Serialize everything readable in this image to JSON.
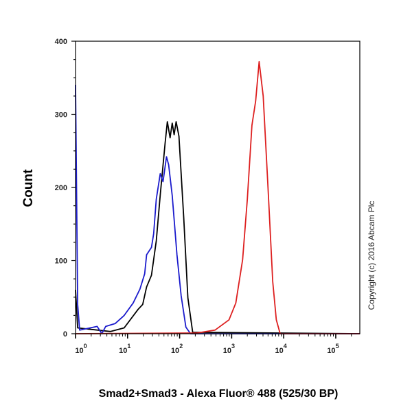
{
  "chart_data": {
    "type": "line",
    "title": "",
    "xlabel": "Smad2+Smad3 - Alexa Fluor® 488 (525/30 BP)",
    "ylabel": "Count",
    "xscale": "log",
    "xlim": [
      1,
      290000
    ],
    "ylim": [
      0,
      400
    ],
    "y_ticks": [
      0,
      100,
      200,
      300,
      400
    ],
    "x_ticks": [
      {
        "base": "10",
        "exp": "0",
        "value": 1
      },
      {
        "base": "10",
        "exp": "1",
        "value": 10
      },
      {
        "base": "10",
        "exp": "2",
        "value": 100
      },
      {
        "base": "10",
        "exp": "3",
        "value": 1000
      },
      {
        "base": "10",
        "exp": "4",
        "value": 10000
      },
      {
        "base": "10",
        "exp": "5",
        "value": 100000
      }
    ],
    "grid": false,
    "annotation": "Copyright (c) 2016 Abcam Plc",
    "series": [
      {
        "color": "#000000",
        "x": [
          1.0,
          1.1,
          4.7,
          8.6,
          15.8,
          19.5,
          23.2,
          28.8,
          35.6,
          42.5,
          52.5,
          58,
          65.5,
          72,
          78.5,
          85.6,
          97,
          120,
          144,
          178,
          290000
        ],
        "y": [
          60,
          8,
          3,
          8,
          33,
          40,
          64,
          80,
          127,
          190,
          260,
          290,
          268,
          288,
          272,
          290,
          270,
          158,
          49,
          2,
          0
        ]
      },
      {
        "color": "#1a1acc",
        "x": [
          1.0,
          1.1,
          1.2,
          2.6,
          3.2,
          3.8,
          5.8,
          8.6,
          12.8,
          17.3,
          21.3,
          23.2,
          28.8,
          31.7,
          35.6,
          42.5,
          48,
          56,
          61.5,
          72,
          89,
          107,
          132,
          162,
          290000
        ],
        "y": [
          340,
          40,
          5,
          10,
          0,
          10,
          14,
          25,
          42,
          61,
          82,
          108,
          118,
          137,
          184,
          219,
          208,
          242,
          231,
          189,
          108,
          52,
          9,
          0,
          0
        ]
      },
      {
        "color": "#dd1f1f",
        "x": [
          1.0,
          219,
          480,
          890,
          1200,
          1620,
          2000,
          2450,
          2890,
          3370,
          4040,
          5000,
          6160,
          7200,
          8540,
          290000
        ],
        "y": [
          0,
          1,
          5,
          19,
          42,
          101,
          184,
          285,
          318,
          372,
          325,
          200,
          71,
          19,
          0,
          0
        ]
      }
    ]
  }
}
